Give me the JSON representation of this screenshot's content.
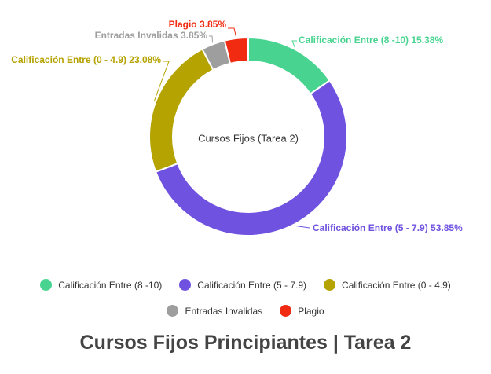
{
  "chart_data": {
    "type": "donut",
    "title": "Cursos Fijos Principiantes | Tarea 2",
    "center_label": "Cursos Fijos (Tarea 2)",
    "slices": [
      {
        "name": "Calificación Entre (8 -10)",
        "value": 15.38,
        "label": "Calificación Entre (8 -10) 15.38%",
        "color": "#48d490"
      },
      {
        "name": "Calificación Entre (5 - 7.9)",
        "value": 53.85,
        "label": "Calificación Entre (5 - 7.9) 53.85%",
        "color": "#6f52e0"
      },
      {
        "name": "Calificación Entre (0 - 4.9)",
        "value": 23.08,
        "label": "Calificación Entre (0 - 4.9) 23.08%",
        "color": "#b5a302"
      },
      {
        "name": "Entradas Invalidas",
        "value": 3.85,
        "label": "Entradas Invalidas 3.85%",
        "color": "#9e9e9e"
      },
      {
        "name": "Plagio",
        "value": 3.85,
        "label": "Plagio 3.85%",
        "color": "#f02b12"
      }
    ]
  },
  "legend_rows": [
    [
      0,
      1,
      2
    ],
    [
      3,
      4
    ]
  ]
}
